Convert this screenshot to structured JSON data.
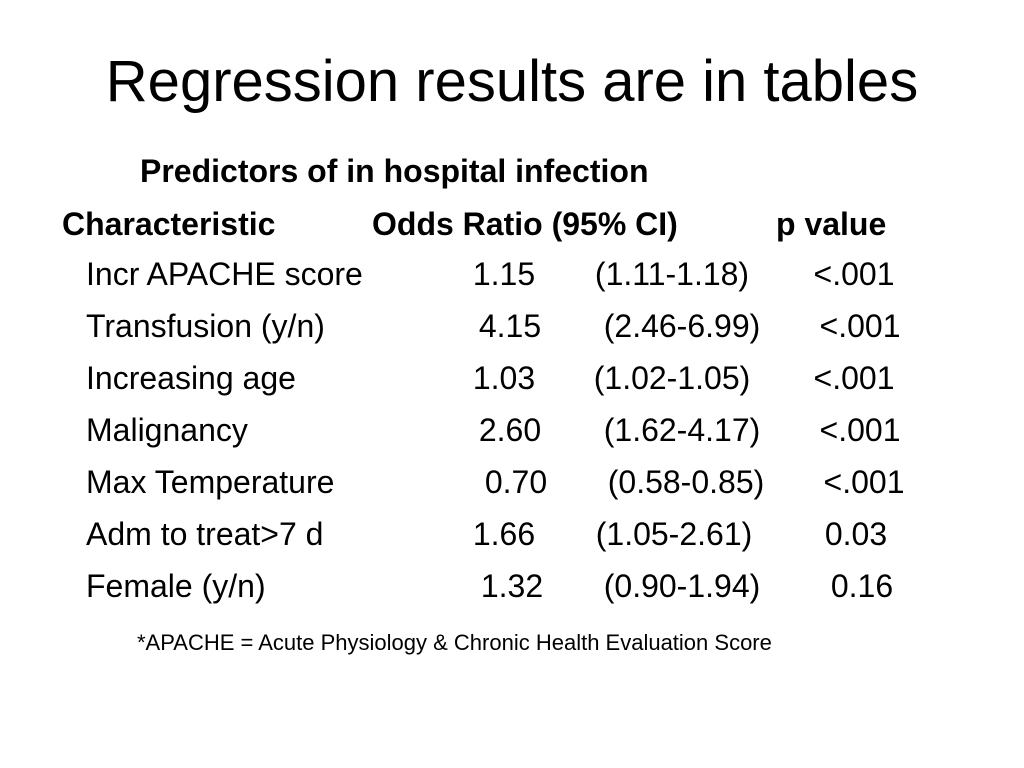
{
  "slide": {
    "title": "Regression results are in tables",
    "caption": "Predictors of in hospital infection",
    "footnote": "*APACHE = Acute Physiology & Chronic Health Evaluation Score"
  },
  "table": {
    "headers": {
      "characteristic": "Characteristic",
      "odds_ratio": "Odds Ratio (95% CI)",
      "p_value": "p value"
    },
    "rows": [
      {
        "characteristic": "Incr APACHE score",
        "odds_ratio": "1.15",
        "ci": "(1.11-1.18)",
        "p": "<.001"
      },
      {
        "characteristic": "Transfusion  (y/n)",
        "odds_ratio": "4.15",
        "ci": "(2.46-6.99)",
        "p": "<.001"
      },
      {
        "characteristic": "Increasing age",
        "odds_ratio": "1.03",
        "ci": "(1.02-1.05)",
        "p": "<.001"
      },
      {
        "characteristic": "Malignancy",
        "odds_ratio": "2.60",
        "ci": "(1.62-4.17)",
        "p": "<.001"
      },
      {
        "characteristic": "Max Temperature",
        "odds_ratio": "0.70",
        "ci": "(0.58-0.85)",
        "p": "<.001"
      },
      {
        "characteristic": "Adm to treat>7 d",
        "odds_ratio": "1.66",
        "ci": "(1.05-2.61)",
        "p": "0.03"
      },
      {
        "characteristic": "Female  (y/n)",
        "odds_ratio": "1.32",
        "ci": "(0.90-1.94)",
        "p": "0.16"
      }
    ]
  }
}
